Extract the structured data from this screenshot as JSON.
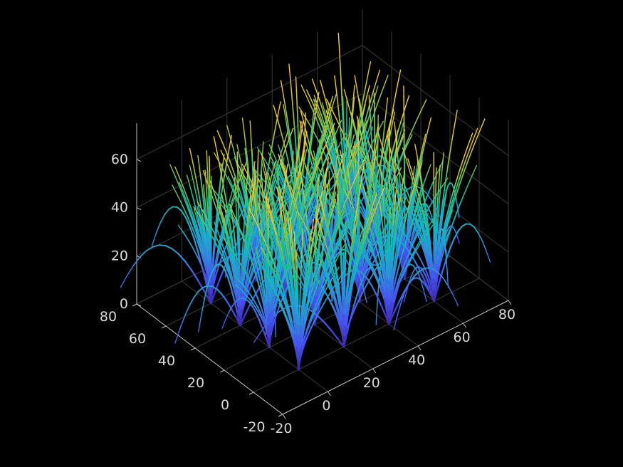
{
  "chart_data": {
    "type": "3d-line",
    "title": "",
    "xlabel": "",
    "ylabel": "",
    "zlabel": "",
    "background": "#000000",
    "colormap": "parula",
    "colormap_stops": [
      "#3e26a8",
      "#4653f0",
      "#2f8fd8",
      "#14b5c8",
      "#2cc17e",
      "#a8c43a",
      "#f2c230",
      "#f9e51a"
    ],
    "grid": true,
    "xlim": [
      -20,
      80
    ],
    "ylim": [
      -20,
      80
    ],
    "zlim": [
      0,
      75
    ],
    "x_ticks": [
      {
        "value": -20,
        "label": "-20"
      },
      {
        "value": 0,
        "label": "0"
      },
      {
        "value": 20,
        "label": "20"
      },
      {
        "value": 40,
        "label": "40"
      },
      {
        "value": 60,
        "label": "60"
      },
      {
        "value": 80,
        "label": "80"
      }
    ],
    "y_ticks": [
      {
        "value": -20,
        "label": "-20"
      },
      {
        "value": 0,
        "label": "0"
      },
      {
        "value": 20,
        "label": "20"
      },
      {
        "value": 40,
        "label": "40"
      },
      {
        "value": 60,
        "label": "60"
      },
      {
        "value": 80,
        "label": "80"
      }
    ],
    "z_ticks": [
      {
        "value": 0,
        "label": "0"
      },
      {
        "value": 20,
        "label": "20"
      },
      {
        "value": 40,
        "label": "40"
      },
      {
        "value": 60,
        "label": "60"
      }
    ],
    "clump_centers": [
      [
        0,
        0
      ],
      [
        20,
        0
      ],
      [
        40,
        0
      ],
      [
        60,
        0
      ],
      [
        0,
        20
      ],
      [
        20,
        20
      ],
      [
        40,
        20
      ],
      [
        60,
        20
      ],
      [
        0,
        40
      ],
      [
        20,
        40
      ],
      [
        40,
        40
      ],
      [
        60,
        40
      ],
      [
        0,
        60
      ],
      [
        20,
        60
      ],
      [
        40,
        60
      ],
      [
        60,
        60
      ]
    ],
    "blades_per_clump": 34,
    "blade_height_range": [
      35,
      72
    ],
    "random_seed": 7
  }
}
